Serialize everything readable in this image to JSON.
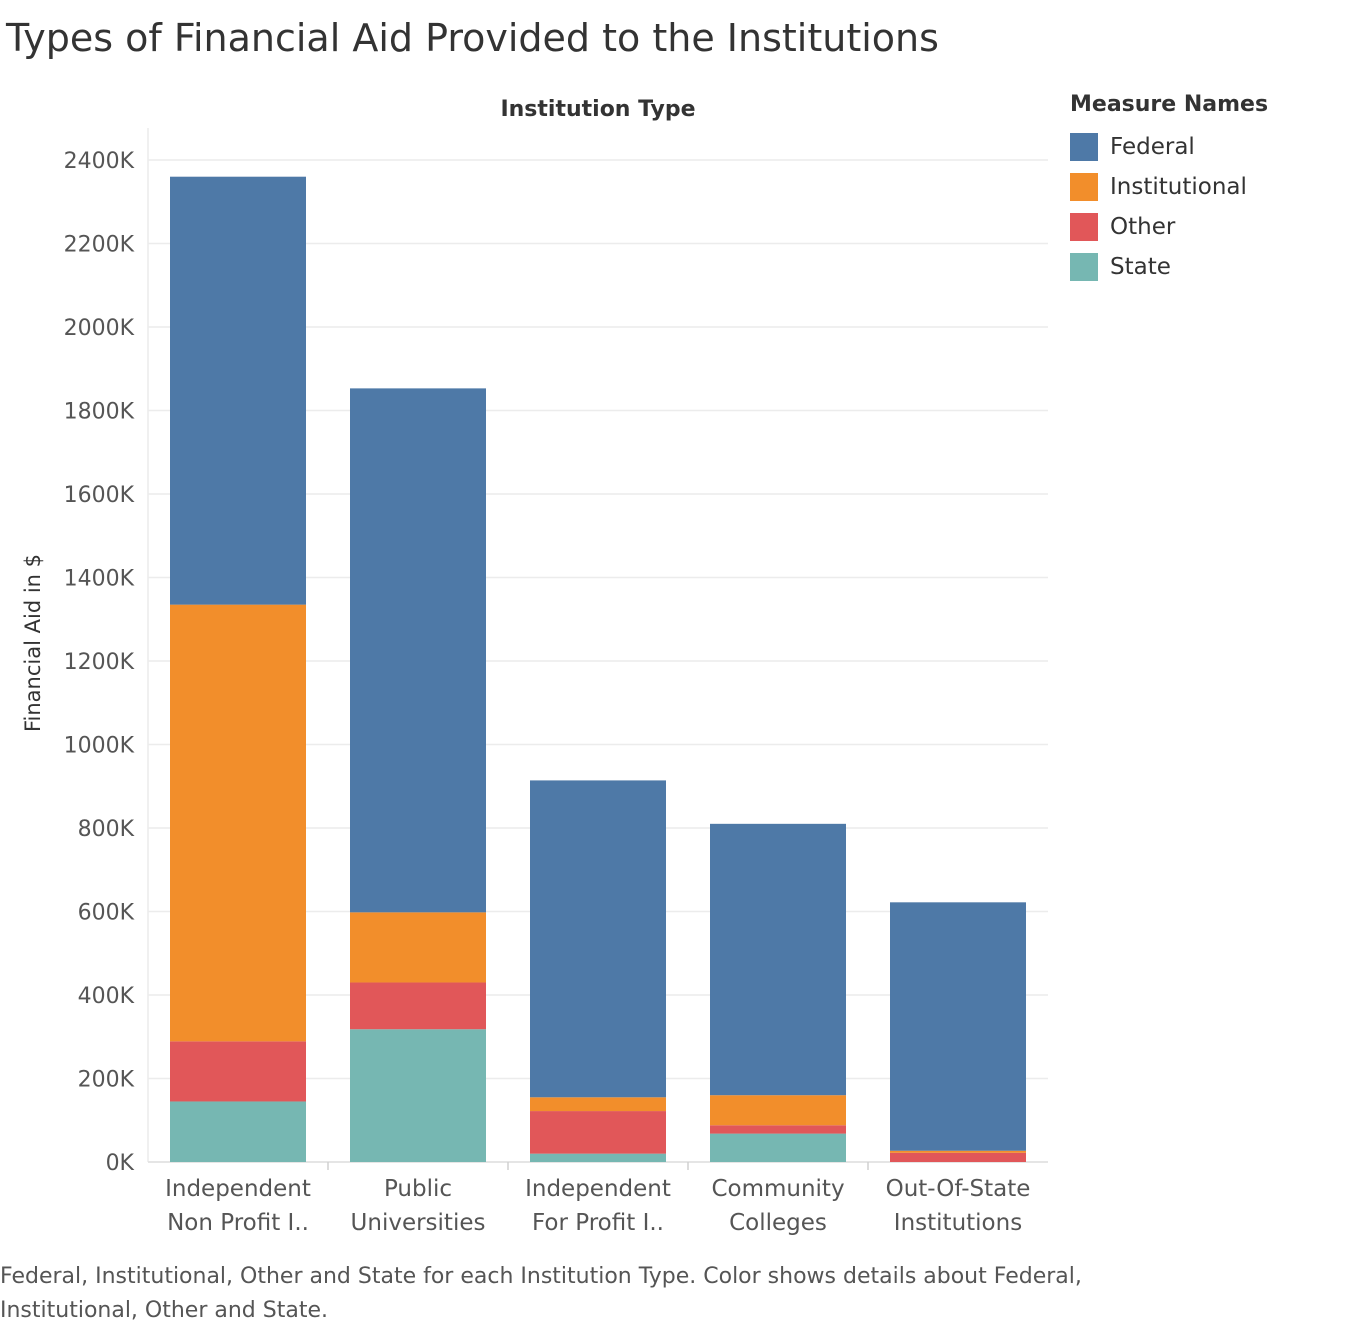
{
  "title": "Types of Financial Aid Provided to the Institutions",
  "caption": "Federal, Institutional, Other and State for each Institution Type.  Color shows details about Federal, Institutional, Other and State.",
  "legend": {
    "title": "Measure Names",
    "items": [
      {
        "label": "Federal",
        "color": "#4e79a7"
      },
      {
        "label": "Institutional",
        "color": "#f28e2b"
      },
      {
        "label": "Other",
        "color": "#e15759"
      },
      {
        "label": "State",
        "color": "#76b7b2"
      }
    ]
  },
  "chart_data": {
    "type": "bar",
    "stacked": true,
    "title": "Types of Financial Aid Provided to the Institutions",
    "column_header": "Institution Type",
    "ylabel": "Financial Aid in $",
    "xlabel": "",
    "ylim": [
      0,
      2400
    ],
    "yunit": "K",
    "yticks": [
      "0K",
      "200K",
      "400K",
      "600K",
      "800K",
      "1000K",
      "1200K",
      "1400K",
      "1600K",
      "1800K",
      "2000K",
      "2200K",
      "2400K"
    ],
    "grid": true,
    "legend_position": "right",
    "categories": [
      [
        "Independent",
        "Non Profit I.."
      ],
      [
        "Public",
        "Universities"
      ],
      [
        "Independent",
        "For Profit I.."
      ],
      [
        "Community",
        "Colleges"
      ],
      [
        "Out-Of-State",
        "Institutions"
      ]
    ],
    "series": [
      {
        "name": "State",
        "color": "#76b7b2",
        "values": [
          145,
          318,
          20,
          68,
          0
        ]
      },
      {
        "name": "Other",
        "color": "#e15759",
        "values": [
          144,
          112,
          102,
          20,
          22
        ]
      },
      {
        "name": "Institutional",
        "color": "#f28e2b",
        "values": [
          1046,
          168,
          33,
          72,
          5
        ]
      },
      {
        "name": "Federal",
        "color": "#4e79a7",
        "values": [
          1025,
          1255,
          759,
          650,
          595
        ]
      }
    ]
  }
}
